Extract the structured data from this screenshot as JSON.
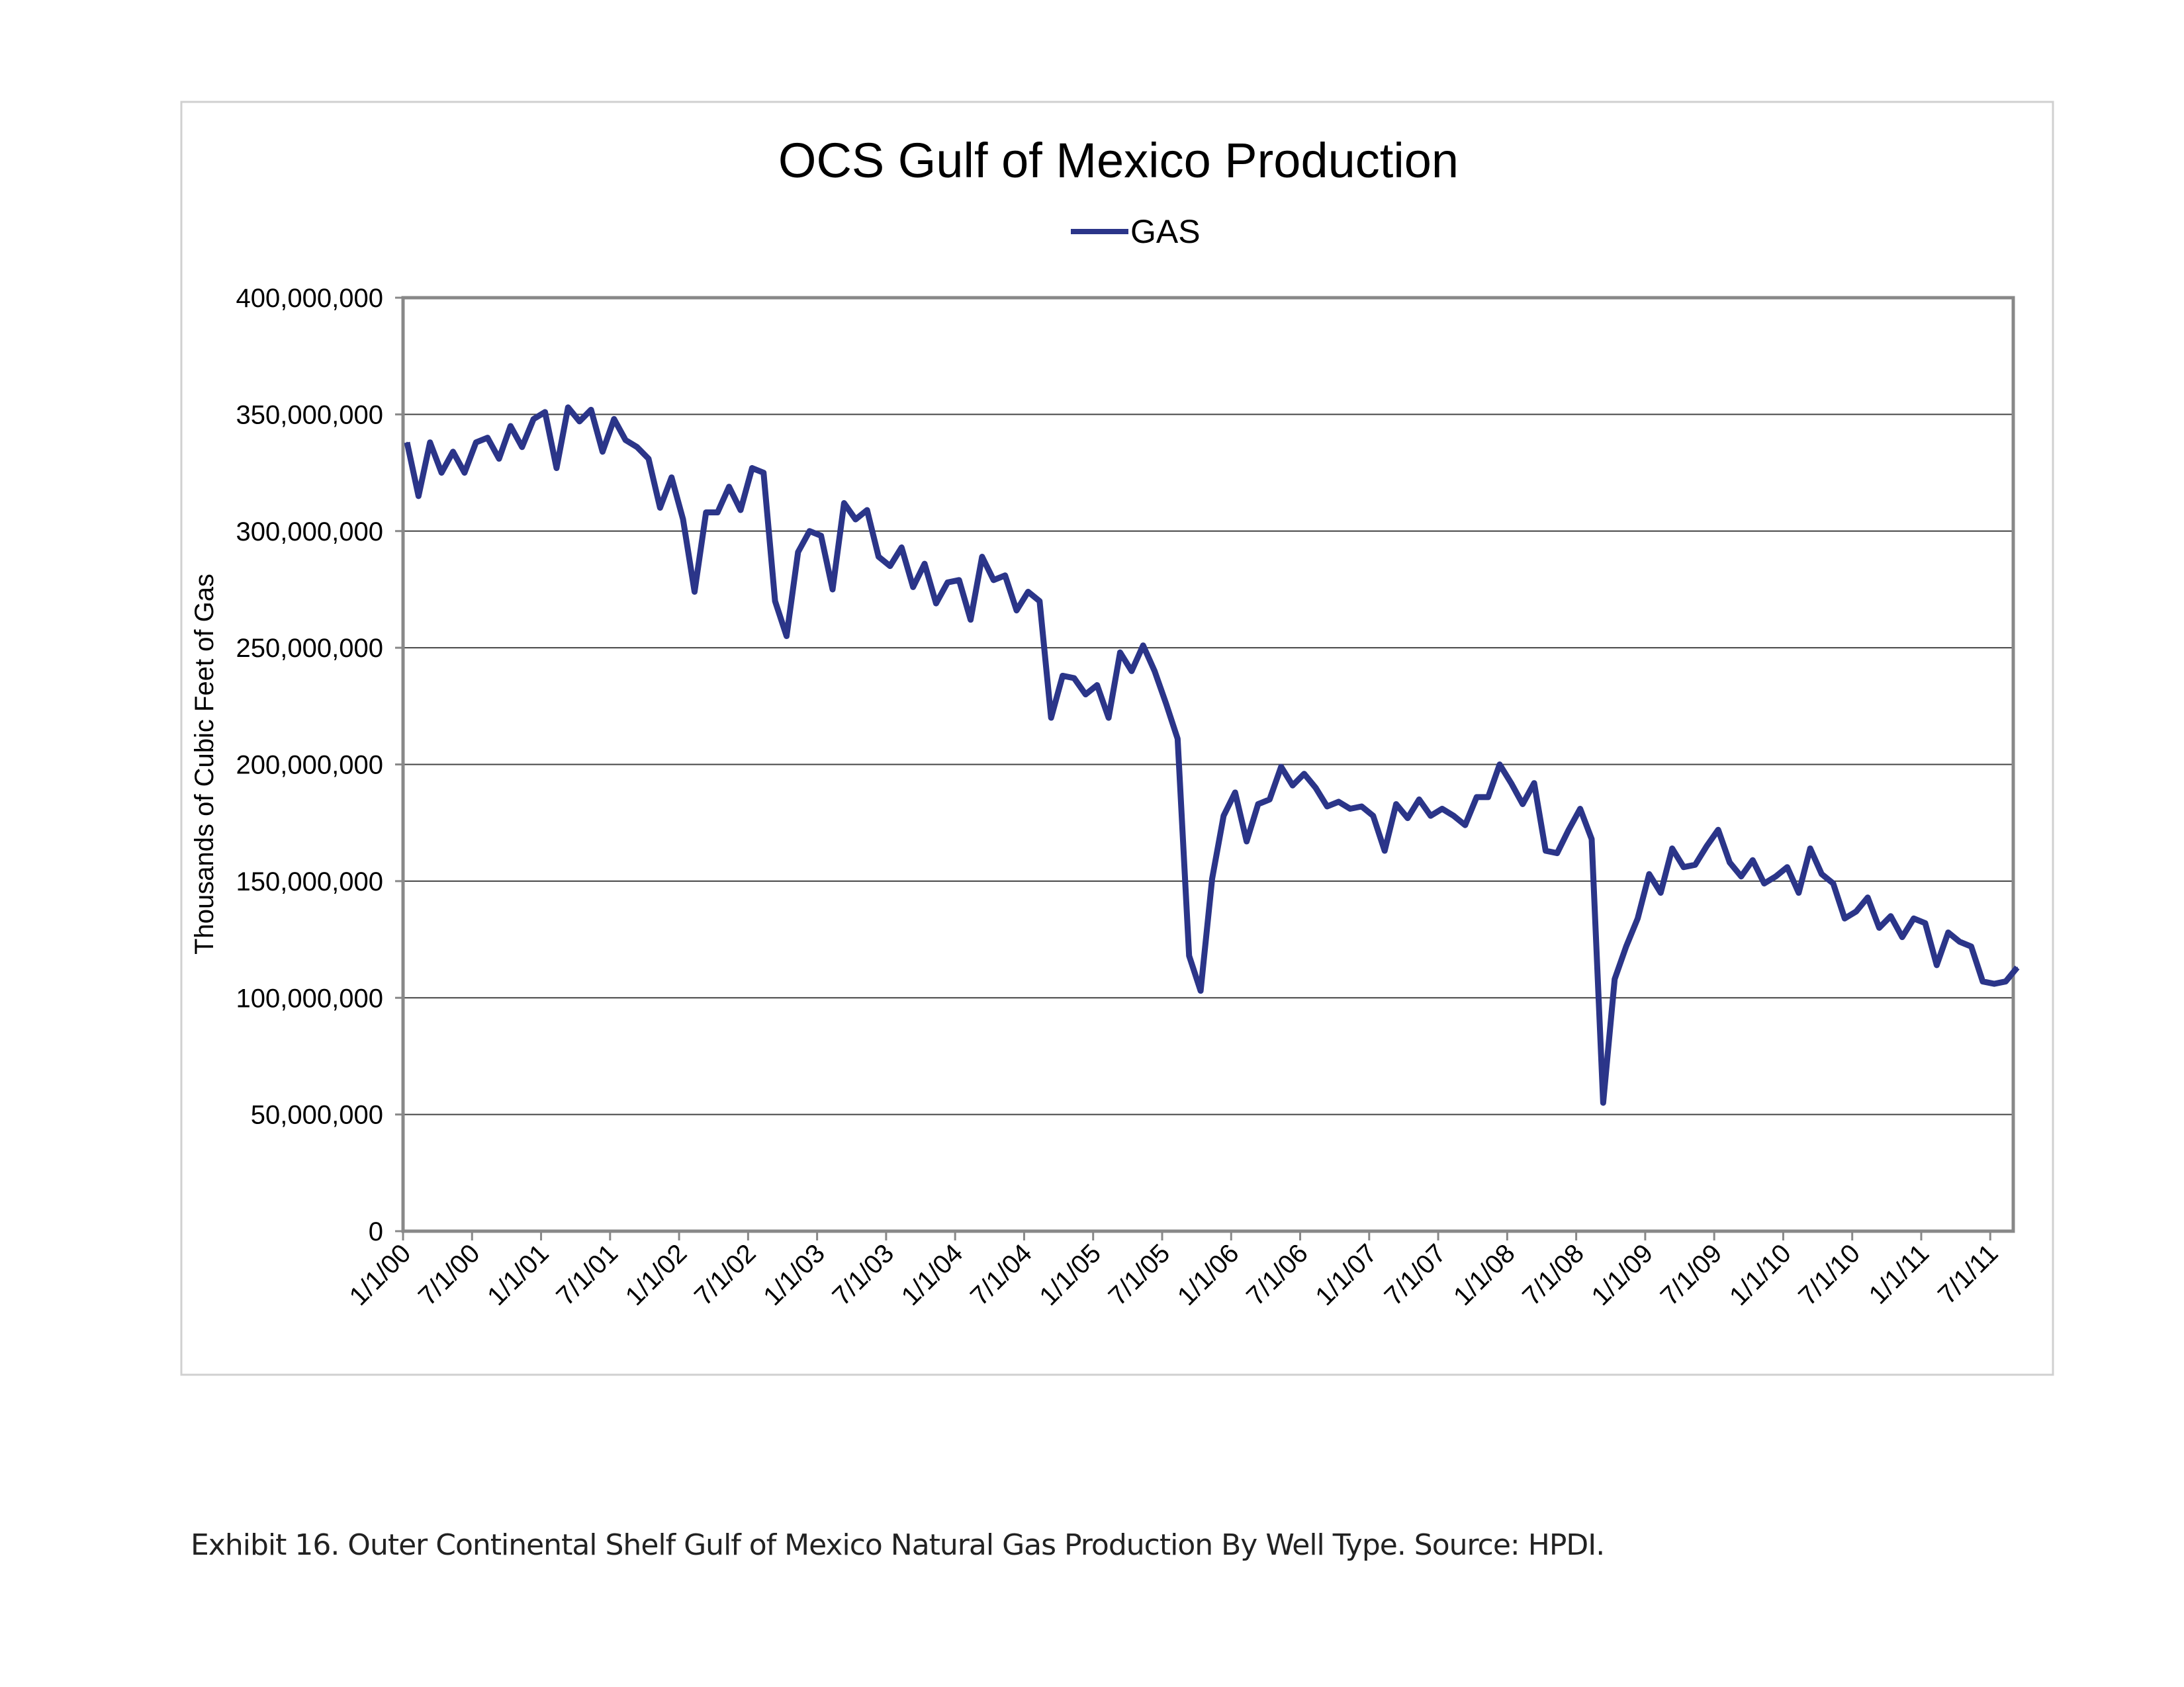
{
  "chart_data": {
    "type": "line",
    "title": "OCS Gulf of Mexico Production",
    "ylabel": "Thousands of Cubic Feet of Gas",
    "xlabel": "",
    "ylim": [
      0,
      400000000
    ],
    "yticks": [
      "0",
      "50,000,000",
      "100,000,000",
      "150,000,000",
      "200,000,000",
      "250,000,000",
      "300,000,000",
      "350,000,000",
      "400,000,000"
    ],
    "xticks": [
      "1/1/00",
      "7/1/00",
      "1/1/01",
      "7/1/01",
      "1/1/02",
      "7/1/02",
      "1/1/03",
      "7/1/03",
      "1/1/04",
      "7/1/04",
      "1/1/05",
      "7/1/05",
      "1/1/06",
      "7/1/06",
      "1/1/07",
      "7/1/07",
      "1/1/08",
      "7/1/08",
      "1/1/09",
      "7/1/09",
      "1/1/10",
      "7/1/10",
      "1/1/11",
      "7/1/11"
    ],
    "x_start": "1/1/00",
    "x_interval": "monthly",
    "grid": "horizontal",
    "legend": "top-center",
    "series": [
      {
        "name": "GAS",
        "color": "#2B3589",
        "values_millions": [
          338,
          315,
          338,
          325,
          334,
          325,
          338,
          340,
          331,
          345,
          336,
          348,
          351,
          327,
          353,
          347,
          352,
          334,
          348,
          339,
          336,
          331,
          310,
          323,
          305,
          274,
          308,
          308,
          319,
          309,
          327,
          325,
          270,
          255,
          291,
          300,
          298,
          275,
          312,
          305,
          309,
          289,
          285,
          293,
          276,
          286,
          269,
          278,
          279,
          262,
          289,
          279,
          281,
          266,
          274,
          270,
          220,
          238,
          237,
          230,
          234,
          220,
          248,
          240,
          251,
          240,
          226,
          211,
          118,
          103,
          151,
          178,
          188,
          167,
          183,
          185,
          199,
          191,
          196,
          190,
          182,
          184,
          181,
          182,
          178,
          163,
          183,
          177,
          185,
          178,
          181,
          178,
          174,
          186,
          186,
          200,
          192,
          183,
          192,
          163,
          162,
          172,
          181,
          168,
          55,
          108,
          122,
          134,
          153,
          145,
          164,
          156,
          157,
          165,
          172,
          158,
          152,
          159,
          149,
          152,
          156,
          145,
          164,
          153,
          149,
          134,
          137,
          143,
          130,
          135,
          126,
          134,
          132,
          114,
          128,
          124,
          122,
          107,
          106,
          107,
          113
        ]
      }
    ]
  },
  "caption": "Exhibit 16. Outer Continental Shelf Gulf of Mexico Natural Gas Production By Well Type.   Source:  HPDI."
}
